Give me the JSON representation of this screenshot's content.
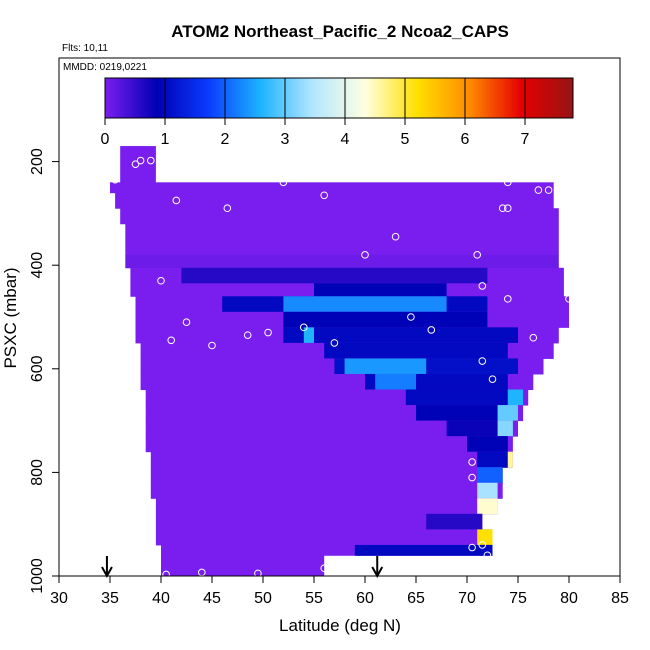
{
  "chart_data": {
    "type": "heatmap",
    "title": "ATOM2 Northeast_Pacific_2 Ncoa2_CAPS",
    "flights_label": "Flts: 10,11",
    "mmdd_label": "MMDD: 0219,0221",
    "xlabel": "Latitude (deg N)",
    "ylabel": "PSXC (mbar)",
    "xlim": [
      30,
      85
    ],
    "ylim": [
      1000,
      0
    ],
    "x_ticks": [
      30,
      35,
      40,
      45,
      50,
      55,
      60,
      65,
      70,
      75,
      80,
      85
    ],
    "y_ticks": [
      200,
      400,
      600,
      800,
      1000
    ],
    "colorbar": {
      "range": [
        0,
        7.8
      ],
      "ticks": [
        0,
        1,
        2,
        3,
        4,
        5,
        6,
        7
      ],
      "colors": [
        "#7a1ef0",
        "#0000b4",
        "#0a3cff",
        "#1eb4ff",
        "#b4e6ff",
        "#ffffe0",
        "#ffe000",
        "#ff8c00",
        "#e60000",
        "#961414"
      ]
    },
    "arrows_at_latitude": [
      34.7,
      61.2
    ],
    "rows": [
      {
        "p": [
          170,
          210
        ],
        "lat": [
          36,
          39.5
        ],
        "v": 0
      },
      {
        "p": [
          210,
          240
        ],
        "lat": [
          36,
          39.5
        ],
        "v": 0
      },
      {
        "p": [
          240,
          260
        ],
        "lat": [
          35,
          78.5
        ],
        "v": 0
      },
      {
        "p": [
          260,
          290
        ],
        "lat": [
          35.5,
          78.5
        ],
        "v": 0
      },
      {
        "p": [
          290,
          320
        ],
        "lat": [
          36,
          79
        ],
        "v": 0
      },
      {
        "p": [
          320,
          350
        ],
        "lat": [
          36.5,
          79
        ],
        "v": 0
      },
      {
        "p": [
          350,
          380
        ],
        "lat": [
          36.5,
          79
        ],
        "v": 0
      },
      {
        "p": [
          380,
          405
        ],
        "lat": [
          36.5,
          79
        ],
        "v": 0.1
      },
      {
        "p": [
          405,
          435
        ],
        "lat": [
          37,
          79.5
        ],
        "v": 0,
        "features": [
          [
            42,
            72,
            0.6
          ]
        ]
      },
      {
        "p": [
          435,
          460
        ],
        "lat": [
          37,
          79.5
        ],
        "v": 0,
        "features": [
          [
            55,
            68,
            0.9
          ]
        ]
      },
      {
        "p": [
          460,
          490
        ],
        "lat": [
          37.5,
          80
        ],
        "v": 0,
        "features": [
          [
            46,
            72,
            1.0
          ],
          [
            52,
            68,
            2.3
          ]
        ]
      },
      {
        "p": [
          490,
          520
        ],
        "lat": [
          37.5,
          80
        ],
        "v": 0,
        "features": [
          [
            52,
            72,
            0.9
          ]
        ]
      },
      {
        "p": [
          520,
          550
        ],
        "lat": [
          37.5,
          79
        ],
        "v": 0,
        "features": [
          [
            52,
            75,
            1.0
          ],
          [
            54,
            55,
            2.6
          ]
        ]
      },
      {
        "p": [
          550,
          580
        ],
        "lat": [
          38,
          78.5
        ],
        "v": 0,
        "features": [
          [
            56,
            74,
            1.0
          ]
        ]
      },
      {
        "p": [
          580,
          610
        ],
        "lat": [
          38,
          77.5
        ],
        "v": 0,
        "features": [
          [
            57,
            75,
            1.1
          ],
          [
            58,
            66,
            2.4
          ]
        ]
      },
      {
        "p": [
          610,
          640
        ],
        "lat": [
          38,
          76.5
        ],
        "v": 0,
        "features": [
          [
            60,
            74,
            1.0
          ],
          [
            61,
            65,
            2.2
          ]
        ]
      },
      {
        "p": [
          640,
          670
        ],
        "lat": [
          38.5,
          76
        ],
        "v": 0,
        "features": [
          [
            64,
            74,
            1.0
          ],
          [
            74,
            75.5,
            2.6
          ]
        ]
      },
      {
        "p": [
          670,
          700
        ],
        "lat": [
          38.5,
          75.5
        ],
        "v": 0,
        "features": [
          [
            65,
            73,
            0.9
          ],
          [
            73,
            75,
            3.0
          ]
        ]
      },
      {
        "p": [
          700,
          730
        ],
        "lat": [
          38.5,
          75
        ],
        "v": 0,
        "features": [
          [
            68,
            73,
            0.8
          ],
          [
            73,
            74.5,
            3.2
          ]
        ]
      },
      {
        "p": [
          730,
          760
        ],
        "lat": [
          38.5,
          74.5
        ],
        "v": 0,
        "features": [
          [
            70,
            74,
            0.9
          ]
        ]
      },
      {
        "p": [
          760,
          790
        ],
        "lat": [
          39,
          74.5
        ],
        "v": 0,
        "features": [
          [
            71,
            74,
            1.0
          ],
          [
            74,
            74.5,
            4.6
          ]
        ]
      },
      {
        "p": [
          790,
          820
        ],
        "lat": [
          39,
          73.5
        ],
        "v": 0,
        "features": [
          [
            71,
            73.5,
            2.0
          ]
        ]
      },
      {
        "p": [
          820,
          850
        ],
        "lat": [
          39,
          73.5
        ],
        "v": 0,
        "features": [
          [
            71,
            73,
            3.4
          ]
        ]
      },
      {
        "p": [
          850,
          880
        ],
        "lat": [
          39.5,
          73
        ],
        "v": 0,
        "features": [
          [
            71,
            73,
            4.4
          ]
        ]
      },
      {
        "p": [
          880,
          910
        ],
        "lat": [
          39.5,
          71.5
        ],
        "v": 0,
        "features": [
          [
            66,
            71.5,
            0.6
          ]
        ]
      },
      {
        "p": [
          910,
          940
        ],
        "lat": [
          39.5,
          72.5
        ],
        "v": 0,
        "features": [
          [
            71,
            72.5,
            5.2
          ]
        ]
      },
      {
        "p": [
          940,
          960
        ],
        "lat": [
          40,
          72.5
        ],
        "v": 0,
        "features": [
          [
            59,
            72.5,
            1.0
          ]
        ]
      },
      {
        "p": [
          960,
          990
        ],
        "lat": [
          40,
          56
        ],
        "v": 0
      },
      {
        "p": [
          990,
          1000
        ],
        "lat": [
          40,
          56
        ],
        "v": 0
      }
    ],
    "points": [
      [
        35.5,
        235
      ],
      [
        37.5,
        205
      ],
      [
        38,
        198
      ],
      [
        39,
        198
      ],
      [
        41.5,
        275
      ],
      [
        46.5,
        290
      ],
      [
        52,
        240
      ],
      [
        56,
        265
      ],
      [
        60,
        380
      ],
      [
        63,
        345
      ],
      [
        68,
        218
      ],
      [
        71,
        380
      ],
      [
        71.5,
        440
      ],
      [
        73.5,
        290
      ],
      [
        74,
        290
      ],
      [
        74,
        240
      ],
      [
        77,
        255
      ],
      [
        78,
        255
      ],
      [
        80,
        465
      ],
      [
        40,
        430
      ],
      [
        42.5,
        510
      ],
      [
        41,
        545
      ],
      [
        45,
        555
      ],
      [
        48.5,
        535
      ],
      [
        50.5,
        530
      ],
      [
        54,
        520
      ],
      [
        57,
        550
      ],
      [
        64.5,
        500
      ],
      [
        66.5,
        525
      ],
      [
        74,
        465
      ],
      [
        76.5,
        540
      ],
      [
        71.5,
        585
      ],
      [
        72.5,
        620
      ],
      [
        70.5,
        780
      ],
      [
        70.5,
        810
      ],
      [
        71.5,
        940
      ],
      [
        72,
        960
      ],
      [
        70.5,
        945
      ],
      [
        40.5,
        997
      ],
      [
        44,
        993
      ],
      [
        49.5,
        995
      ],
      [
        56,
        985
      ]
    ]
  }
}
